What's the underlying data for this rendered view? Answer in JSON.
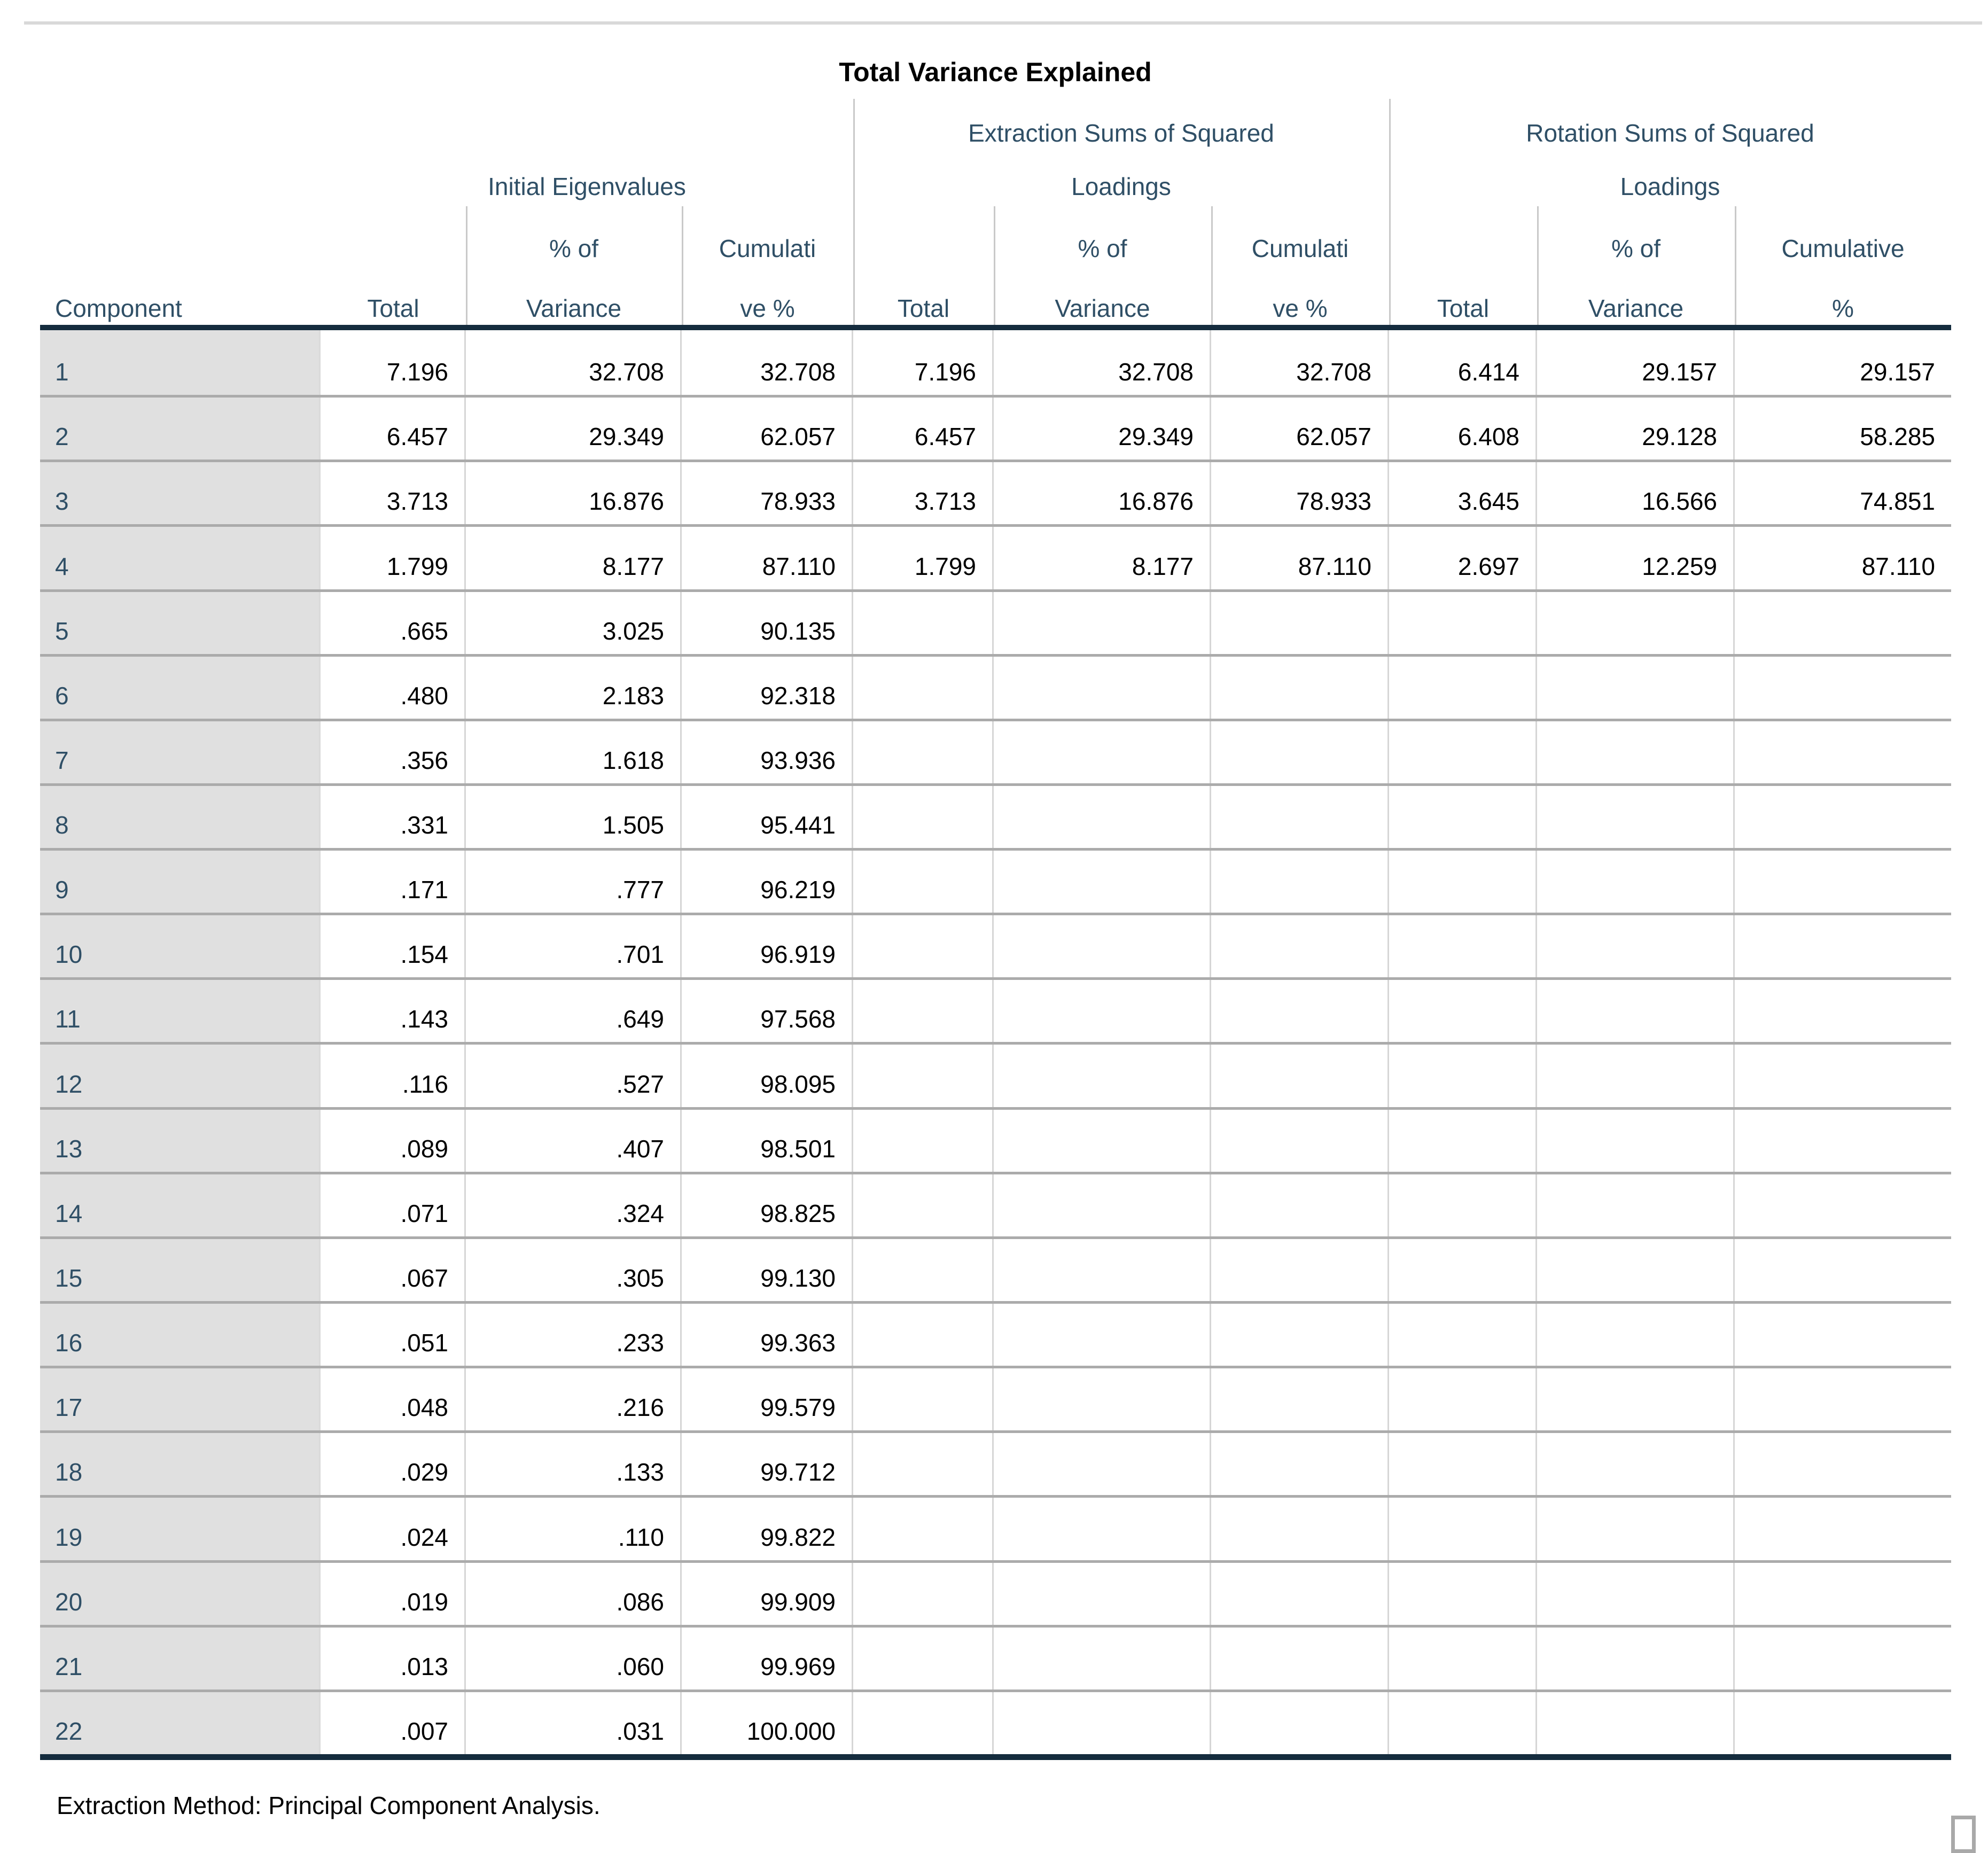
{
  "title": "Total Variance Explained",
  "footer_note": "Extraction Method: Principal Component Analysis.",
  "colors": {
    "header_text": "#2F4F66",
    "data_text": "#000000",
    "component_column_bg": "#E0E0E0",
    "thick_rule": "#152C3E",
    "row_line": "#ABABAB",
    "column_line": "#D6D6D6",
    "top_rule": "#D9D9D9",
    "handle_border": "#A9A9A9"
  },
  "header": {
    "groups": [
      {
        "label": "Initial Eigenvalues"
      },
      {
        "label_line1": "Extraction Sums of Squared",
        "label_line2": "Loadings"
      },
      {
        "label_line1": "Rotation Sums of Squared",
        "label_line2": "Loadings"
      }
    ],
    "columns": [
      {
        "id": "component",
        "line1": "",
        "line2": "Component"
      },
      {
        "id": "initial_total",
        "line1": "",
        "line2": "Total"
      },
      {
        "id": "initial_pct",
        "line1": "% of",
        "line2": "Variance"
      },
      {
        "id": "initial_cum",
        "line1": "Cumulati",
        "line2": "ve %"
      },
      {
        "id": "extraction_total",
        "line1": "",
        "line2": "Total"
      },
      {
        "id": "extraction_pct",
        "line1": "% of",
        "line2": "Variance"
      },
      {
        "id": "extraction_cum",
        "line1": "Cumulati",
        "line2": "ve %"
      },
      {
        "id": "rotation_total",
        "line1": "",
        "line2": "Total"
      },
      {
        "id": "rotation_pct",
        "line1": "% of",
        "line2": "Variance"
      },
      {
        "id": "rotation_cum",
        "line1": "Cumulative",
        "line2": "%"
      }
    ]
  },
  "table": {
    "rows": [
      {
        "component": "1",
        "values": [
          "7.196",
          "32.708",
          "32.708",
          "7.196",
          "32.708",
          "32.708",
          "6.414",
          "29.157",
          "29.157"
        ]
      },
      {
        "component": "2",
        "values": [
          "6.457",
          "29.349",
          "62.057",
          "6.457",
          "29.349",
          "62.057",
          "6.408",
          "29.128",
          "58.285"
        ]
      },
      {
        "component": "3",
        "values": [
          "3.713",
          "16.876",
          "78.933",
          "3.713",
          "16.876",
          "78.933",
          "3.645",
          "16.566",
          "74.851"
        ]
      },
      {
        "component": "4",
        "values": [
          "1.799",
          "8.177",
          "87.110",
          "1.799",
          "8.177",
          "87.110",
          "2.697",
          "12.259",
          "87.110"
        ]
      },
      {
        "component": "5",
        "values": [
          ".665",
          "3.025",
          "90.135",
          "",
          "",
          "",
          "",
          "",
          ""
        ]
      },
      {
        "component": "6",
        "values": [
          ".480",
          "2.183",
          "92.318",
          "",
          "",
          "",
          "",
          "",
          ""
        ]
      },
      {
        "component": "7",
        "values": [
          ".356",
          "1.618",
          "93.936",
          "",
          "",
          "",
          "",
          "",
          ""
        ]
      },
      {
        "component": "8",
        "values": [
          ".331",
          "1.505",
          "95.441",
          "",
          "",
          "",
          "",
          "",
          ""
        ]
      },
      {
        "component": "9",
        "values": [
          ".171",
          ".777",
          "96.219",
          "",
          "",
          "",
          "",
          "",
          ""
        ]
      },
      {
        "component": "10",
        "values": [
          ".154",
          ".701",
          "96.919",
          "",
          "",
          "",
          "",
          "",
          ""
        ]
      },
      {
        "component": "11",
        "values": [
          ".143",
          ".649",
          "97.568",
          "",
          "",
          "",
          "",
          "",
          ""
        ]
      },
      {
        "component": "12",
        "values": [
          ".116",
          ".527",
          "98.095",
          "",
          "",
          "",
          "",
          "",
          ""
        ]
      },
      {
        "component": "13",
        "values": [
          ".089",
          ".407",
          "98.501",
          "",
          "",
          "",
          "",
          "",
          ""
        ]
      },
      {
        "component": "14",
        "values": [
          ".071",
          ".324",
          "98.825",
          "",
          "",
          "",
          "",
          "",
          ""
        ]
      },
      {
        "component": "15",
        "values": [
          ".067",
          ".305",
          "99.130",
          "",
          "",
          "",
          "",
          "",
          ""
        ]
      },
      {
        "component": "16",
        "values": [
          ".051",
          ".233",
          "99.363",
          "",
          "",
          "",
          "",
          "",
          ""
        ]
      },
      {
        "component": "17",
        "values": [
          ".048",
          ".216",
          "99.579",
          "",
          "",
          "",
          "",
          "",
          ""
        ]
      },
      {
        "component": "18",
        "values": [
          ".029",
          ".133",
          "99.712",
          "",
          "",
          "",
          "",
          "",
          ""
        ]
      },
      {
        "component": "19",
        "values": [
          ".024",
          ".110",
          "99.822",
          "",
          "",
          "",
          "",
          "",
          ""
        ]
      },
      {
        "component": "20",
        "values": [
          ".019",
          ".086",
          "99.909",
          "",
          "",
          "",
          "",
          "",
          ""
        ]
      },
      {
        "component": "21",
        "values": [
          ".013",
          ".060",
          "99.969",
          "",
          "",
          "",
          "",
          "",
          ""
        ]
      },
      {
        "component": "22",
        "values": [
          ".007",
          ".031",
          "100.000",
          "",
          "",
          "",
          "",
          "",
          ""
        ]
      }
    ]
  }
}
